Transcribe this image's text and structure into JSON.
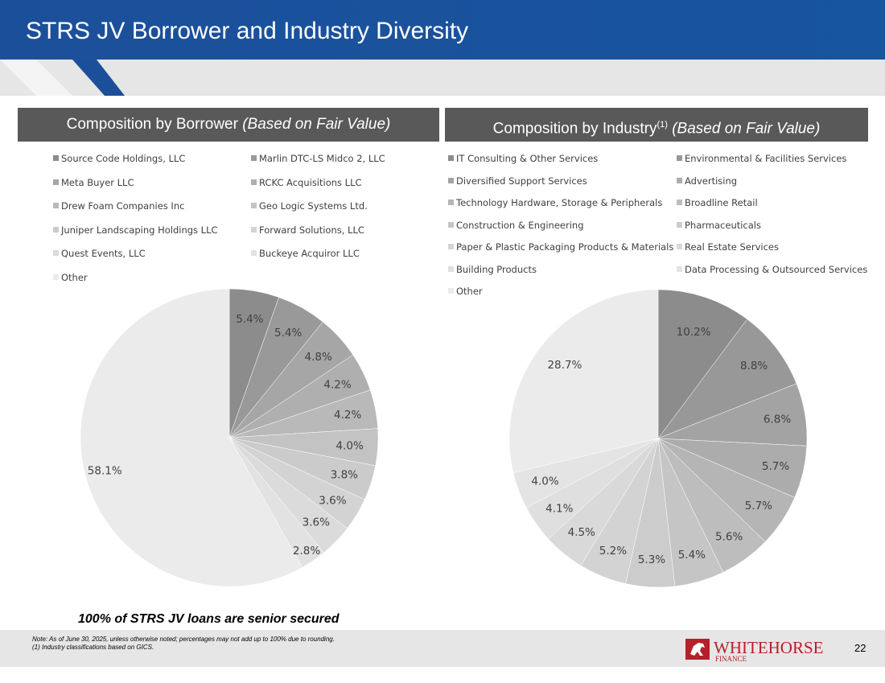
{
  "title": "STRS JV Borrower and Industry Diversity",
  "colors": {
    "brand_blue": "#1c4f9a",
    "panel_header": "#595959"
  },
  "borrower_panel": {
    "title": "Composition by Borrower ",
    "title_italic": "(Based on Fair Value)"
  },
  "industry_panel": {
    "title": "Composition by Industry",
    "title_sup": "(1)",
    "title_italic": " (Based on Fair Value)"
  },
  "chart_data": [
    {
      "type": "pie",
      "title": "Composition by Borrower (Based on Fair Value)",
      "categories": [
        "Source Code Holdings, LLC",
        "Marlin DTC-LS Midco 2, LLC",
        "Meta Buyer LLC",
        "RCKC Acquisitions LLC",
        "Drew Foam Companies Inc",
        "Geo Logic Systems Ltd.",
        "Juniper Landscaping Holdings LLC",
        "Forward Solutions, LLC",
        "Quest Events, LLC",
        "Buckeye Acquiror LLC",
        "Other"
      ],
      "values": [
        5.4,
        5.4,
        4.8,
        4.2,
        4.2,
        4.0,
        3.8,
        3.6,
        3.6,
        2.8,
        58.1
      ],
      "labels": [
        "5.4%",
        "5.4%",
        "4.8%",
        "4.2%",
        "4.2%",
        "4.0%",
        "3.8%",
        "3.6%",
        "3.6%",
        "2.8%",
        "58.1%"
      ],
      "legend": "top",
      "unit": "%"
    },
    {
      "type": "pie",
      "title": "Composition by Industry(1) (Based on Fair Value)",
      "categories": [
        "IT Consulting & Other Services",
        "Environmental & Facilities Services",
        "Diversified Support Services",
        "Advertising",
        "Technology Hardware, Storage & Peripherals",
        "Broadline Retail",
        "Construction & Engineering",
        "Pharmaceuticals",
        "Paper & Plastic Packaging Products & Materials",
        "Real Estate Services",
        "Building Products",
        "Data Processing & Outsourced Services",
        "Other"
      ],
      "values": [
        10.2,
        8.8,
        6.8,
        5.7,
        5.7,
        5.6,
        5.4,
        5.3,
        5.2,
        4.5,
        4.1,
        4.0,
        28.7
      ],
      "labels": [
        "10.2%",
        "8.8%",
        "6.8%",
        "5.7%",
        "5.7%",
        "5.6%",
        "5.4%",
        "5.3%",
        "5.2%",
        "4.5%",
        "4.1%",
        "4.0%",
        "28.7%"
      ],
      "legend": "top",
      "unit": "%"
    }
  ],
  "borrower_colors": [
    "#8c8c8c",
    "#999999",
    "#a6a6a6",
    "#afafaf",
    "#b9b9b9",
    "#c3c3c3",
    "#cbcbcb",
    "#d3d3d3",
    "#dbdbdb",
    "#e2e2e2",
    "#ebebeb"
  ],
  "industry_colors": [
    "#8c8c8c",
    "#989898",
    "#a3a3a3",
    "#acacac",
    "#b5b5b5",
    "#bdbdbd",
    "#c5c5c5",
    "#cccccc",
    "#d3d3d3",
    "#d9d9d9",
    "#dfdfdf",
    "#e4e4e4",
    "#ebebeb"
  ],
  "senior_note": "100% of STRS JV loans are senior secured",
  "footer": {
    "note_line1": "Note: As of June 30, 2025, unless otherwise noted; percentages may not add up to 100% due to rounding.",
    "note_line2": "(1)     Industry classifications based on GICS.",
    "logo_word": "WHITEHORSE",
    "logo_sub": "FINANCE",
    "page_number": "22"
  }
}
